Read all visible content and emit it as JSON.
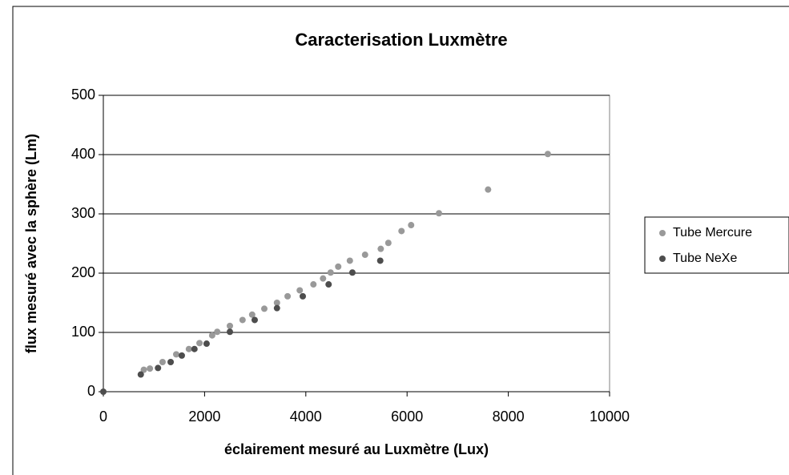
{
  "chart_data": {
    "type": "scatter",
    "title": "Caracterisation Luxmètre",
    "x_label": "éclairement mesuré au Luxmètre (Lux)",
    "y_label": "flux mesuré avec la sphère (Lm)",
    "xlim": [
      0,
      10000
    ],
    "xticks": [
      0,
      2000,
      4000,
      6000,
      8000,
      10000
    ],
    "ylim": [
      0,
      500
    ],
    "yticks": [
      0,
      100,
      200,
      300,
      400,
      500
    ],
    "grid": true,
    "legend": "right",
    "series": [
      {
        "name": "Tube Mercure",
        "color": "#999999",
        "x": [
          800,
          920,
          1170,
          1440,
          1690,
          1900,
          2150,
          2250,
          2500,
          2750,
          2940,
          3180,
          3430,
          3640,
          3880,
          4150,
          4340,
          4490,
          4640,
          4870,
          5170,
          5480,
          5630,
          5890,
          6080,
          6630,
          7600,
          8780
        ],
        "values": [
          37,
          39,
          50,
          63,
          72,
          82,
          95,
          101,
          111,
          121,
          130,
          140,
          150,
          161,
          171,
          181,
          191,
          201,
          211,
          221,
          231,
          241,
          251,
          271,
          281,
          301,
          341,
          401
        ]
      },
      {
        "name": "Tube NeXe",
        "color": "#4d4d4d",
        "x": [
          0,
          740,
          1080,
          1330,
          1550,
          1800,
          2040,
          2500,
          2990,
          3430,
          3940,
          4450,
          4920,
          5470
        ],
        "values": [
          0,
          29,
          40,
          50,
          61,
          72,
          81,
          101,
          121,
          141,
          161,
          181,
          201,
          221
        ]
      }
    ]
  }
}
